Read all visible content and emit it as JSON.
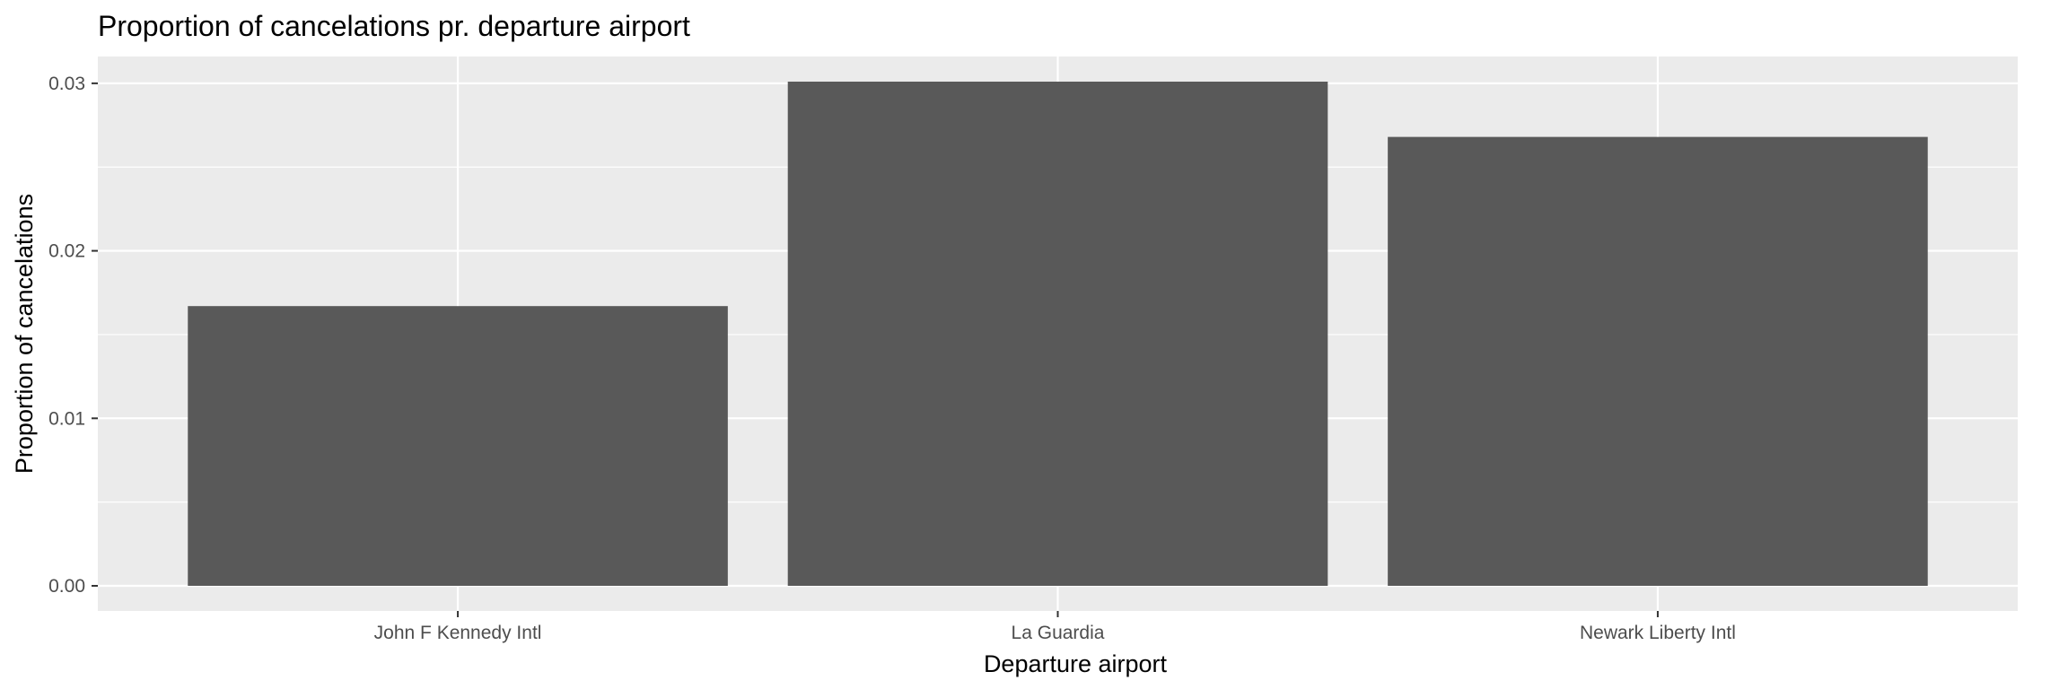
{
  "chart_data": {
    "type": "bar",
    "title": "Proportion of cancelations pr. departure airport",
    "xlabel": "Departure airport",
    "ylabel": "Proportion of cancelations",
    "categories": [
      "John F Kennedy Intl",
      "La Guardia",
      "Newark Liberty Intl"
    ],
    "values": [
      0.0167,
      0.0301,
      0.0268
    ],
    "ylim": [
      -0.0015,
      0.0316
    ],
    "yticks": [
      "0.00",
      "0.01",
      "0.02",
      "0.03"
    ],
    "grid": true,
    "legend": "none",
    "colors": {
      "panel_background": "#ebebeb",
      "grid_line": "#ffffff",
      "bar_fill": "#595959",
      "tick_text": "#4d4d4d",
      "tick_mark": "#333333"
    }
  }
}
